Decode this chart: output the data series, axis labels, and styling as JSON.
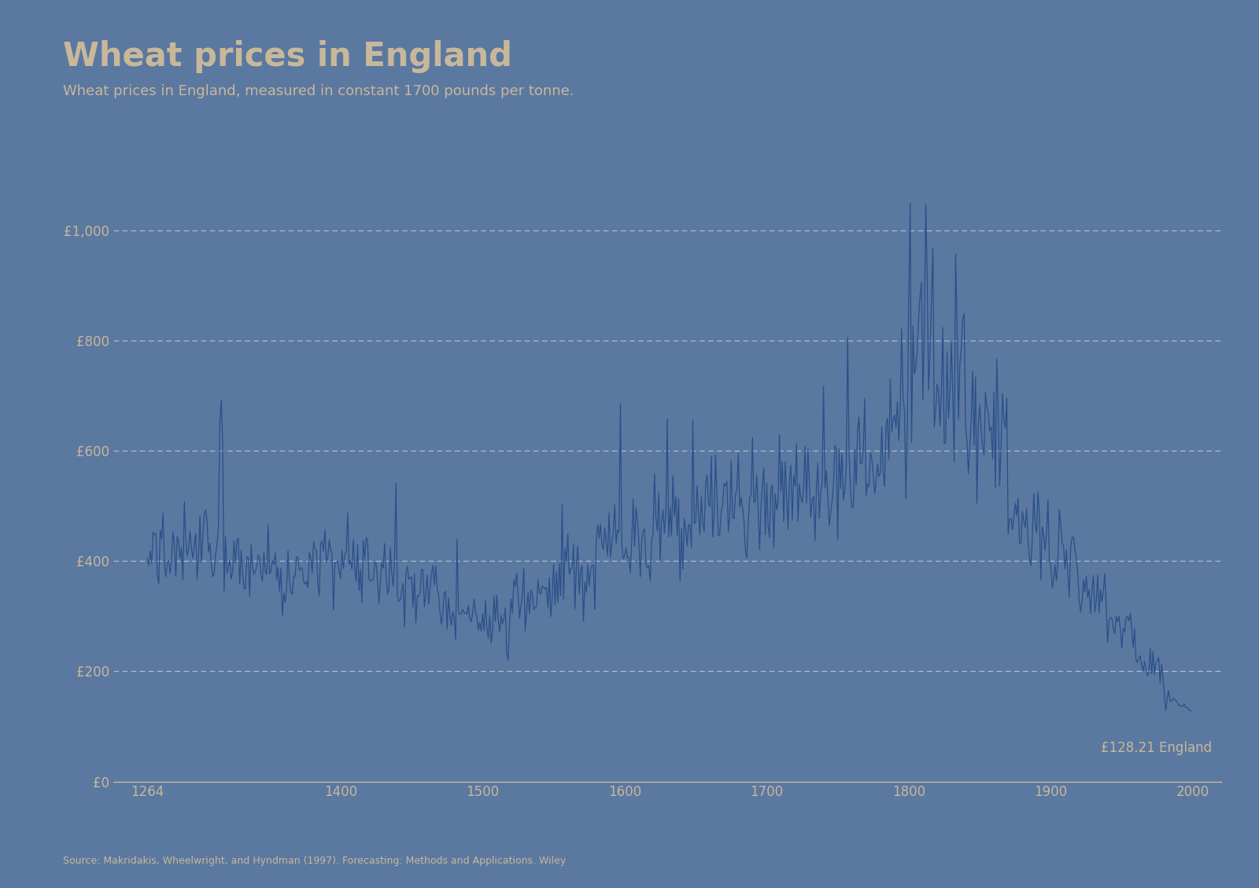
{
  "title": "Wheat prices in England",
  "subtitle": "Wheat prices in England, measured in constant 1700 pounds per tonne.",
  "source_note": "Source: Makridakis, Wheelwright, and Hyndman (1997). Forecasting: Methods and Applications. Wiley",
  "label_text": "£128.21 England",
  "background_color": "#5b78a0",
  "line_color": "#2a4f8a",
  "text_color": "#c8b89a",
  "grid_color": "#ffffff",
  "x_start": 1264,
  "x_end": 1999,
  "yticks": [
    0,
    200,
    400,
    600,
    800,
    1000
  ],
  "ylim": [
    0,
    1080
  ],
  "xlabel_ticks": [
    1264,
    1400,
    1500,
    1600,
    1700,
    1800,
    1900,
    2000
  ],
  "xlabel_labels": [
    "1264",
    "1400",
    "1500",
    "1600",
    "1700",
    "1800",
    "1900",
    "2000"
  ]
}
